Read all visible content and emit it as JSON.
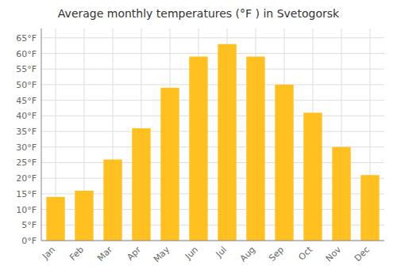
{
  "chart_data": {
    "type": "bar",
    "title": "Average monthly temperatures (°F ) in Svetogorsk",
    "categories": [
      "Jan",
      "Feb",
      "Mar",
      "Apr",
      "May",
      "Jun",
      "Jul",
      "Aug",
      "Sep",
      "Oct",
      "Nov",
      "Dec"
    ],
    "values": [
      14,
      16,
      26,
      36,
      49,
      59,
      63,
      59,
      50,
      41,
      30,
      21
    ],
    "color": "#FFC020",
    "ylim": [
      0,
      68
    ],
    "yticks": [
      {
        "value": 0,
        "label": "0°F"
      },
      {
        "value": 5,
        "label": "5°F"
      },
      {
        "value": 10,
        "label": "10°F"
      },
      {
        "value": 15,
        "label": "15°F"
      },
      {
        "value": 20,
        "label": "20°F"
      },
      {
        "value": 25,
        "label": "25°F"
      },
      {
        "value": 30,
        "label": "30°F"
      },
      {
        "value": 35,
        "label": "35°F"
      },
      {
        "value": 40,
        "label": "40°F"
      },
      {
        "value": 45,
        "label": "45°F"
      },
      {
        "value": 50,
        "label": "50°F"
      },
      {
        "value": 55,
        "label": "55°F"
      },
      {
        "value": 60,
        "label": "60°F"
      },
      {
        "value": 65,
        "label": "65°F"
      }
    ],
    "grid": true
  }
}
